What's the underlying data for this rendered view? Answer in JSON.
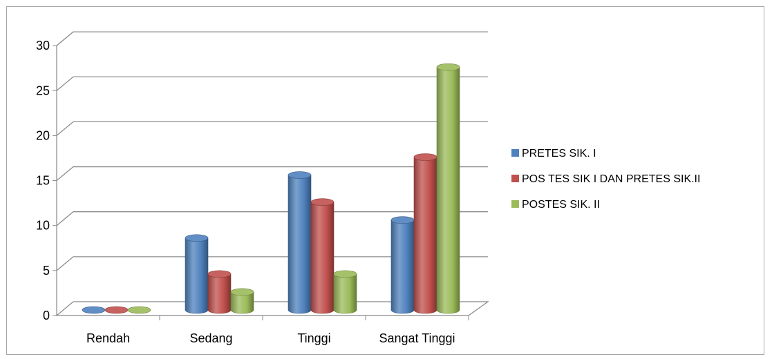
{
  "chart_data": {
    "type": "bar",
    "title": "",
    "xlabel": "",
    "ylabel": "",
    "categories": [
      "Rendah",
      "Sedang",
      "Tinggi",
      "Sangat Tinggi"
    ],
    "ylim": [
      0,
      30
    ],
    "yticks": [
      "0",
      "5",
      "10",
      "15",
      "20",
      "25",
      "30"
    ],
    "grid": true,
    "legend_position": "right",
    "series": [
      {
        "name": "PRETES SIK. I",
        "color": "#4f81bd",
        "values": [
          0,
          8,
          15,
          10
        ]
      },
      {
        "name": "POS TES SIK I DAN PRETES SIK.II",
        "color": "#c0504d",
        "values": [
          0,
          4,
          12,
          17
        ]
      },
      {
        "name": "POSTES SIK. II",
        "color": "#9bbb59",
        "values": [
          0,
          2,
          4,
          27
        ]
      }
    ]
  }
}
